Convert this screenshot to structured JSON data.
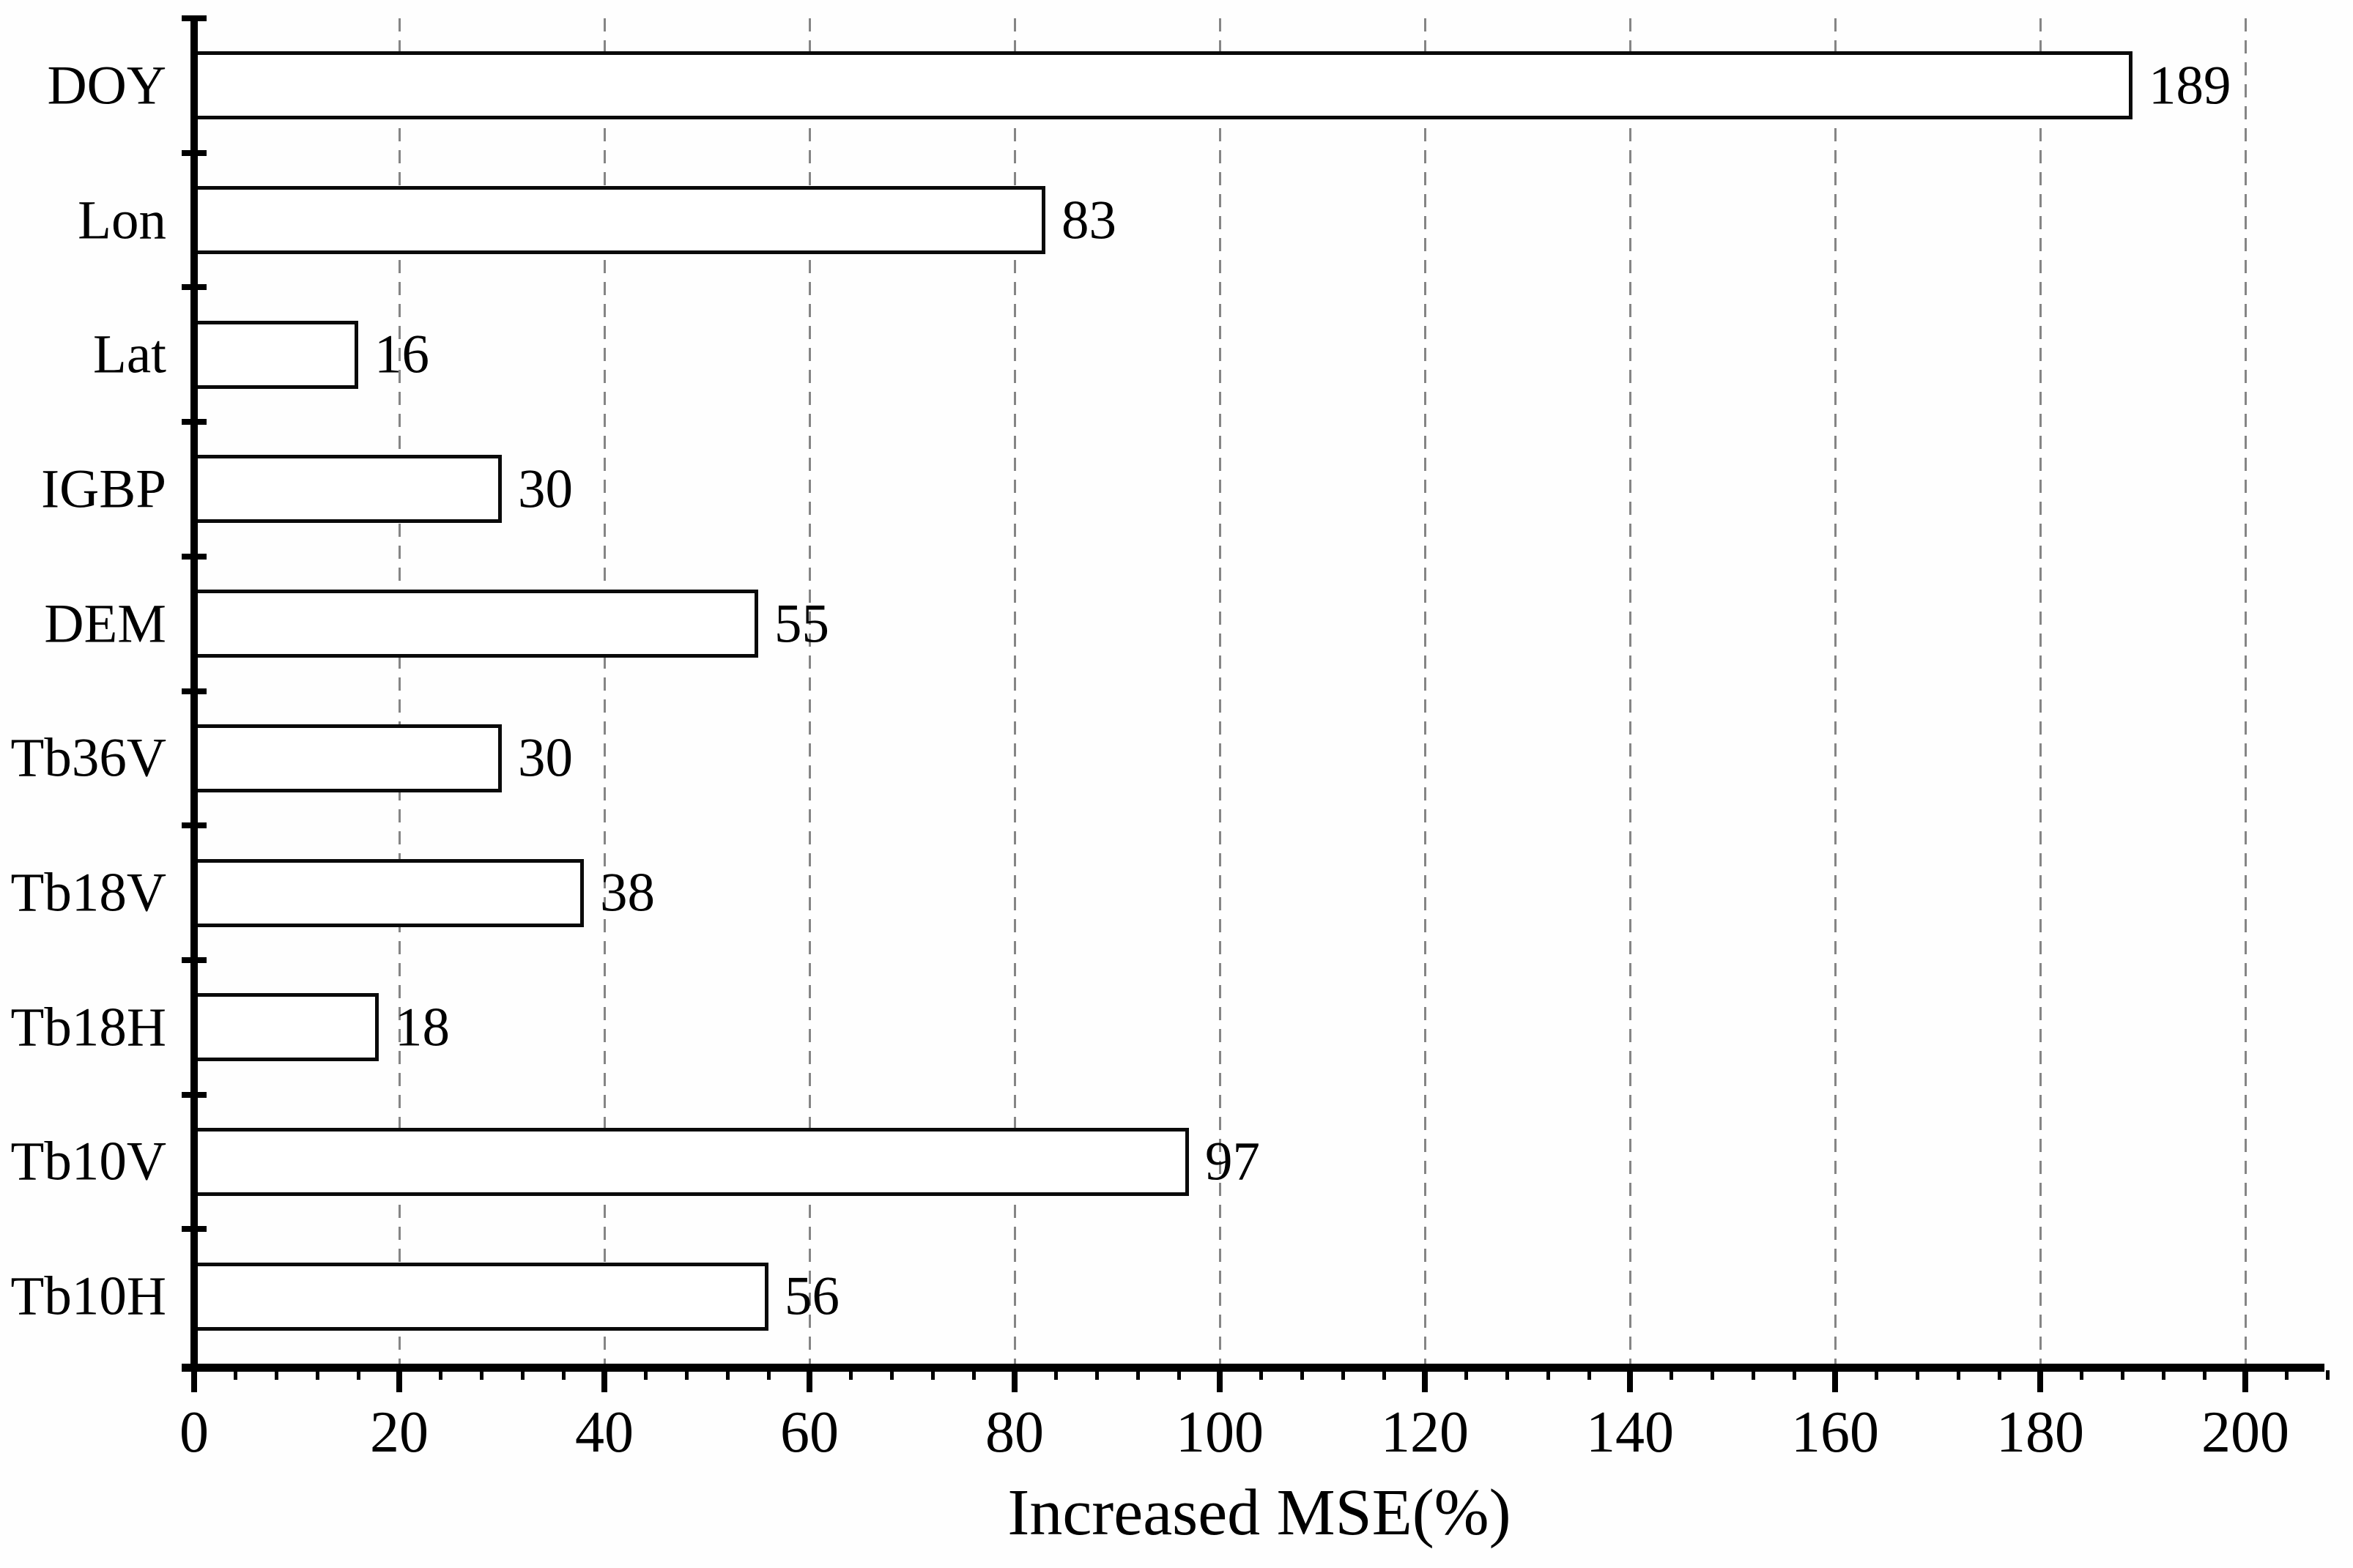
{
  "chart_data": {
    "type": "bar",
    "orientation": "horizontal",
    "title": "",
    "xlabel": "Increased MSE(%)",
    "ylabel": "",
    "categories": [
      "DOY",
      "Lon",
      "Lat",
      "IGBP",
      "DEM",
      "Tb36V",
      "Tb18V",
      "Tb18H",
      "Tb10V",
      "Tb10H"
    ],
    "values": [
      189,
      83,
      16,
      30,
      55,
      30,
      38,
      18,
      97,
      56
    ],
    "data_labels": [
      "189",
      "83",
      "16",
      "30",
      "55",
      "30",
      "38",
      "18",
      "97",
      "56"
    ],
    "xlim": [
      0,
      208
    ],
    "x_major_ticks": [
      0,
      20,
      40,
      60,
      80,
      100,
      120,
      140,
      160,
      180,
      200
    ],
    "x_minor_tick_step": 4,
    "grid": "vertical dashed gridlines at each major tick (20-200)",
    "legend": null,
    "colors": {
      "bar_fill": "#ffffff",
      "bar_border": "#0a0a0a",
      "gridline": "#858585",
      "axis": "#000000",
      "text": "#000000",
      "background": "#fefefe"
    }
  }
}
